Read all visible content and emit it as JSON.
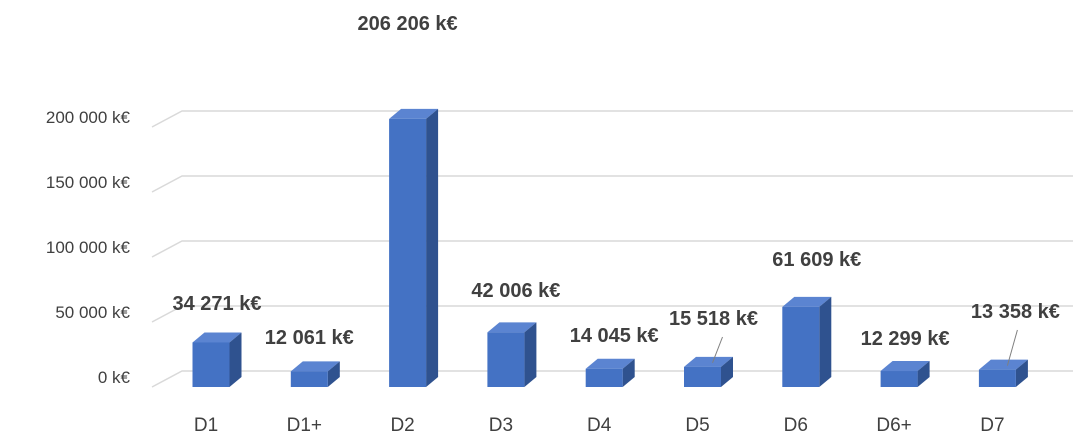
{
  "chart_data": {
    "type": "bar",
    "title": "",
    "xlabel": "",
    "ylabel": "",
    "categories": [
      "D1",
      "D1+",
      "D2",
      "D3",
      "D4",
      "D5",
      "D6",
      "D6+",
      "D7"
    ],
    "values": [
      34271,
      12061,
      206206,
      42006,
      14045,
      15518,
      61609,
      12299,
      13358
    ],
    "data_labels": [
      "34 271 k€",
      "12 061 k€",
      "206 206 k€",
      "42 006 k€",
      "14 045 k€",
      "15 518 k€",
      "61 609 k€",
      "12 299 k€",
      "13 358 k€"
    ],
    "ylim": [
      0,
      200000
    ],
    "yticks": [
      0,
      50000,
      100000,
      150000,
      200000
    ],
    "ytick_labels": [
      "0 k€",
      "50 000 k€",
      "100 000 k€",
      "150 000 k€",
      "200 000 k€"
    ],
    "grid": true,
    "legend": "none",
    "style": "3d-column",
    "colors": {
      "bar_front": "#4472C4",
      "bar_side": "#2F528F",
      "bar_top": "#5B84D1",
      "gridline": "#D9D9D9",
      "text": "#404040"
    }
  }
}
